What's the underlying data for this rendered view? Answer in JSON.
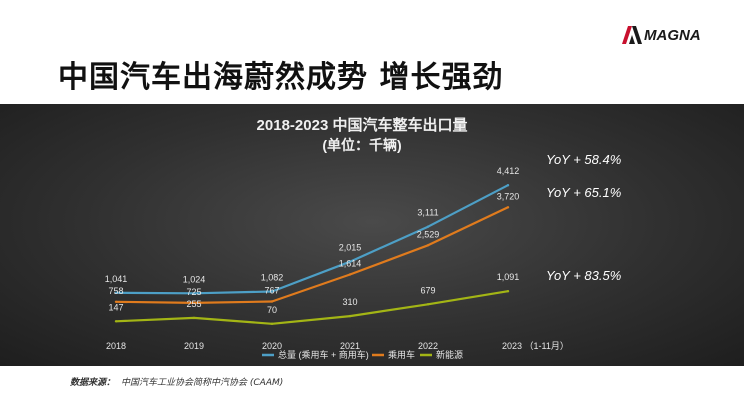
{
  "page": {
    "title": "中国汽车出海蔚然成势 增长强劲",
    "logo_text": "MAGNA",
    "source_label": "数据来源：",
    "source_text": "中国汽车工业协会简称中汽协会 (CAAM)"
  },
  "chart_data": {
    "type": "line",
    "title": "2018-2023 中国汽车整车出口量",
    "subtitle": "(单位：千辆)",
    "categories": [
      "2018",
      "2019",
      "2020",
      "2021",
      "2022",
      "2023 （1-11月）"
    ],
    "series": [
      {
        "name": "总量 (乘用车 + 商用车)",
        "values": [
          1041,
          1024,
          1082,
          2015,
          3111,
          4412
        ],
        "labels": [
          "1,041",
          "1,024",
          "1,082",
          "2,015",
          "3,111",
          "4,412"
        ],
        "color": "#4d9fc6"
      },
      {
        "name": "乘用车",
        "values": [
          758,
          725,
          767,
          1614,
          2529,
          3720
        ],
        "labels": [
          "758",
          "725",
          "767",
          "1,614",
          "2,529",
          "3,720"
        ],
        "color": "#e07b1d"
      },
      {
        "name": "新能源",
        "values": [
          147,
          255,
          70,
          310,
          679,
          1091
        ],
        "labels": [
          "147",
          "255",
          "70",
          "310",
          "679",
          "1,091"
        ],
        "color": "#a3b515"
      }
    ],
    "annotations": [
      "YoY + 58.4%",
      "YoY + 65.1%",
      "YoY + 83.5%"
    ],
    "ylim": [
      0,
      4700
    ],
    "grid": false,
    "legend_position": "bottom-right",
    "label_color": "#e6e6e6",
    "annotation_color": "#ffffff"
  }
}
